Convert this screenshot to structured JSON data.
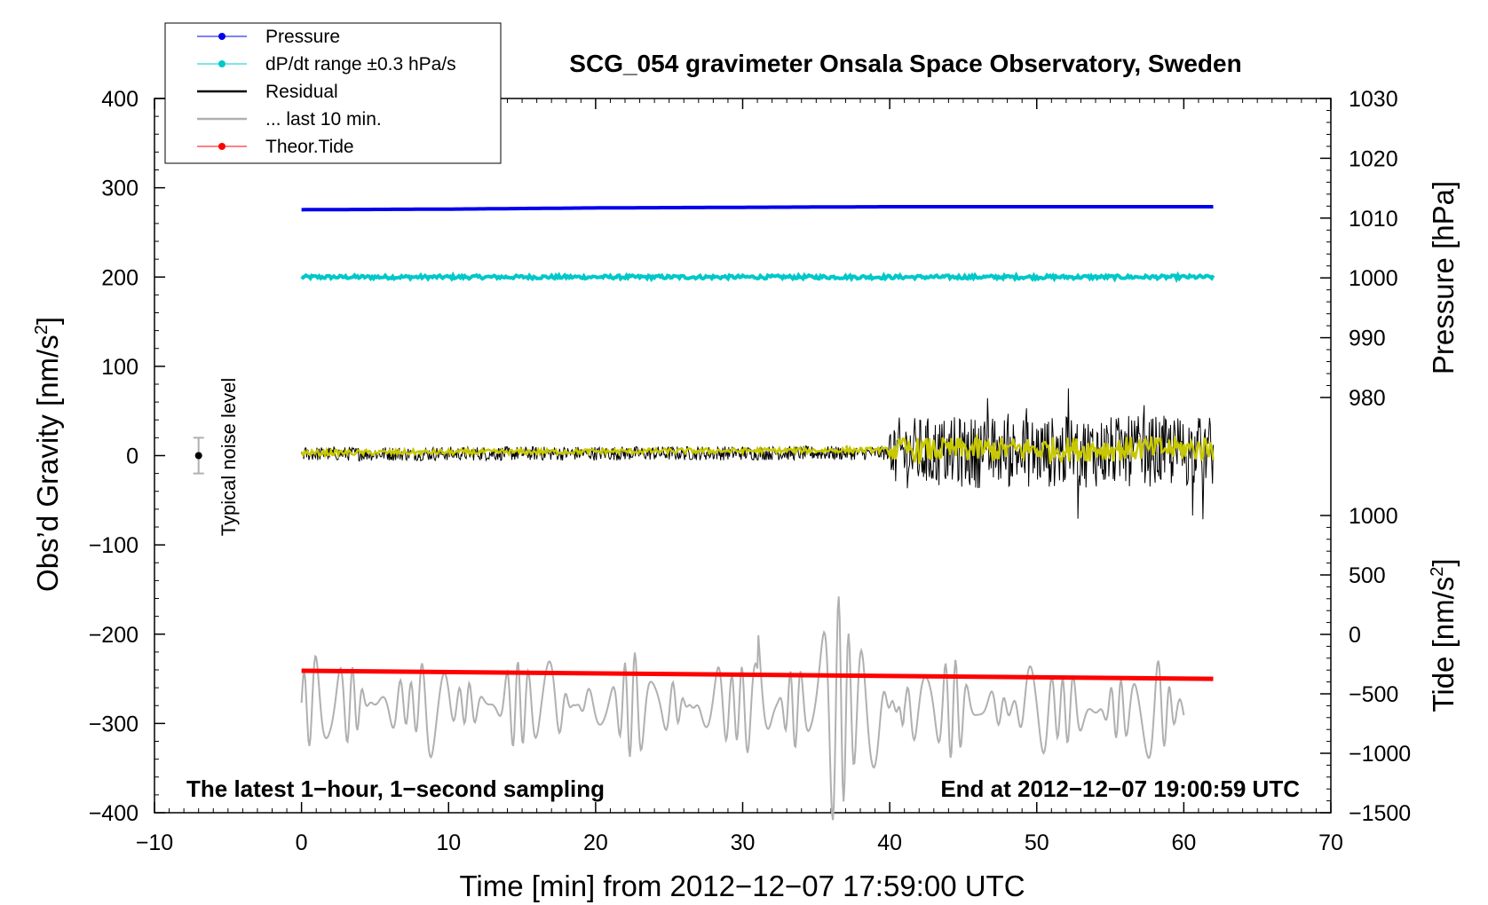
{
  "chart_data": {
    "type": "line",
    "title": "SCG_054 gravimeter Onsala Space Observatory, Sweden",
    "xlabel": "Time [min] from 2012−12−07 17:59:00 UTC",
    "ylabel_left": "Obs’d Gravity [nm/s",
    "ylabel_left_sup": "2",
    "ylabel_left_close": "]",
    "ylabel_right_top": "Pressure [hPa]",
    "ylabel_right_bottom": "Tide [nm/s",
    "ylabel_right_bottom_sup": "2",
    "ylabel_right_bottom_close": "]",
    "xlim": [
      -10,
      70
    ],
    "ylim_left": [
      -400,
      400
    ],
    "ylim_pressure": [
      980,
      1030
    ],
    "ylim_tide": [
      -1500,
      1000
    ],
    "x_ticks": [
      -10,
      0,
      10,
      20,
      30,
      40,
      50,
      60,
      70
    ],
    "x_tick_labels": [
      "−10",
      "0",
      "10",
      "20",
      "30",
      "40",
      "50",
      "60",
      "70"
    ],
    "y_left_ticks": [
      400,
      300,
      200,
      100,
      0,
      -100,
      -200,
      -300,
      -400
    ],
    "y_left_tick_labels": [
      "400",
      "300",
      "200",
      "100",
      "0",
      "−100",
      "−200",
      "−300",
      "−400"
    ],
    "pressure_ticks": [
      1030,
      1020,
      1010,
      1000,
      990,
      980
    ],
    "pressure_tick_labels": [
      "1030",
      "1020",
      "1010",
      "1000",
      "990",
      "980"
    ],
    "tide_ticks": [
      1000,
      500,
      0,
      -500,
      -1000,
      -1500
    ],
    "tide_tick_labels": [
      "1000",
      "500",
      "0",
      "−500",
      "−1000",
      "−1500"
    ],
    "note_left": "The latest 1−hour, 1−second sampling",
    "note_right": "End at 2012−12−07 19:00:59 UTC",
    "noise_label": "Typical noise level",
    "noise_bar": {
      "x": -7,
      "center": 0,
      "half_range": 20
    },
    "legend": [
      {
        "label": "Pressure",
        "color": "#0000ee",
        "style": "line-dot"
      },
      {
        "label": "dP/dt range ±0.3 hPa/s",
        "color": "#00c8c8",
        "style": "line-dot"
      },
      {
        "label": "Residual",
        "color": "#000000",
        "style": "line"
      },
      {
        "label": "... last 10 min.",
        "color": "#b0b0b0",
        "style": "line"
      },
      {
        "label": "Theor.Tide",
        "color": "#ff0000",
        "style": "line-dot"
      }
    ],
    "series": [
      {
        "name": "Pressure",
        "color": "#0000ee",
        "axis": "pressure",
        "x": [
          0,
          10,
          20,
          30,
          40,
          50,
          62
        ],
        "values": [
          1011.4,
          1011.5,
          1011.7,
          1011.8,
          1011.9,
          1011.9,
          1011.9
        ]
      },
      {
        "name": "dP/dt",
        "color": "#00c8c8",
        "axis": "gravity",
        "x": [
          0,
          62
        ],
        "values": [
          200,
          200
        ],
        "noise": 2
      },
      {
        "name": "Residual",
        "color": "#000000",
        "axis": "gravity",
        "x": [
          0,
          40,
          62
        ],
        "values": [
          2,
          3,
          5
        ],
        "noise_before_40": 8,
        "noise_after_40": 40
      },
      {
        "name": "Residual smoothed",
        "color": "#c8c800",
        "axis": "gravity",
        "x": [
          0,
          62
        ],
        "values": [
          3,
          8
        ]
      },
      {
        "name": "... last 10 min.",
        "color": "#b0b0b0",
        "axis": "gravity",
        "x_start": 0,
        "x_end": 60,
        "start_value": -277,
        "end_value": -285,
        "amplitude": 40
      },
      {
        "name": "Theor.Tide",
        "color": "#ff0000",
        "axis": "gravity",
        "x": [
          0,
          62
        ],
        "values": [
          -241,
          -250
        ]
      }
    ]
  }
}
